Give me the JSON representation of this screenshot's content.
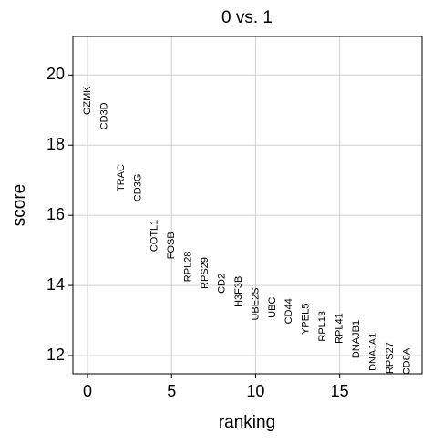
{
  "chart_data": {
    "type": "ranked-text",
    "title": "0 vs. 1",
    "x_label": "ranking",
    "y_label": "score",
    "x": [
      0,
      1,
      2,
      3,
      4,
      5,
      6,
      7,
      8,
      9,
      10,
      11,
      12,
      13,
      14,
      15,
      16,
      17,
      18,
      19
    ],
    "labels": [
      "GZMK",
      "CD3D",
      "TRAC",
      "CD3G",
      "COTL1",
      "FOSB",
      "RPL28",
      "RPS29",
      "CD2",
      "H3F3B",
      "UBE2S",
      "UBC",
      "CD44",
      "YPEL5",
      "RPL13",
      "RPL41",
      "DNAJB1",
      "DNAJA1",
      "RPS27",
      "CD8A"
    ],
    "values": [
      18.86,
      18.44,
      16.68,
      16.39,
      14.96,
      14.75,
      14.1,
      13.9,
      13.77,
      13.38,
      13.0,
      13.07,
      12.9,
      12.6,
      12.4,
      12.34,
      11.92,
      11.56,
      11.48,
      11.45
    ],
    "xlim": [
      -0.87,
      19.9
    ],
    "ylim": [
      11.48,
      21.1
    ],
    "xticks": [
      0,
      5,
      10,
      15
    ],
    "yticks": [
      12,
      14,
      16,
      18,
      20
    ],
    "grid": true,
    "color": "#000000"
  }
}
